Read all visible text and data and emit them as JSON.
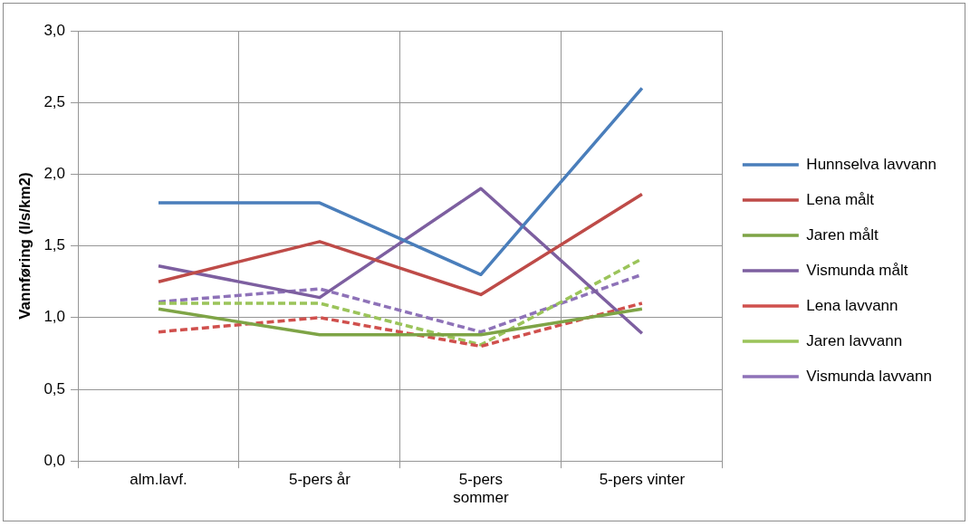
{
  "chart_data": {
    "type": "line",
    "ylabel": "Vannføring (l/s/km2)",
    "categories": [
      "alm.lavf.",
      "5-pers år",
      "5-pers sommer",
      "5-pers vinter"
    ],
    "ylim": [
      0,
      3
    ],
    "yticks": [
      {
        "value": 0,
        "label": "0,0"
      },
      {
        "value": 0.5,
        "label": "0,5"
      },
      {
        "value": 1,
        "label": "1,0"
      },
      {
        "value": 1.5,
        "label": "1,5"
      },
      {
        "value": 2,
        "label": "2,0"
      },
      {
        "value": 2.5,
        "label": "2,5"
      },
      {
        "value": 3,
        "label": "3,0"
      }
    ],
    "grid": true,
    "legend": "right",
    "marker": "none",
    "series": [
      {
        "name": "Hunnselva lavvann",
        "color": "#4a7ebb",
        "line_style": "solid",
        "values": [
          1.8,
          1.8,
          1.3,
          2.6
        ]
      },
      {
        "name": "Lena målt",
        "color": "#be4b48",
        "line_style": "solid",
        "values": [
          1.25,
          1.53,
          1.16,
          1.86
        ]
      },
      {
        "name": "Jaren målt",
        "color": "#7ea446",
        "line_style": "solid",
        "values": [
          1.06,
          0.88,
          0.88,
          1.06
        ]
      },
      {
        "name": "Vismunda målt",
        "color": "#7d5fa0",
        "line_style": "solid",
        "values": [
          1.36,
          1.14,
          1.9,
          0.89
        ]
      },
      {
        "name": "Lena lavvann",
        "color": "#d0504d",
        "line_style": "dashed",
        "values": [
          0.9,
          1.0,
          0.8,
          1.1
        ]
      },
      {
        "name": "Jaren lavvann",
        "color": "#9bc45a",
        "line_style": "dashed",
        "values": [
          1.1,
          1.1,
          0.81,
          1.41
        ]
      },
      {
        "name": "Vismunda lavvann",
        "color": "#8e72b8",
        "line_style": "dashed",
        "values": [
          1.11,
          1.2,
          0.9,
          1.3
        ]
      }
    ]
  }
}
